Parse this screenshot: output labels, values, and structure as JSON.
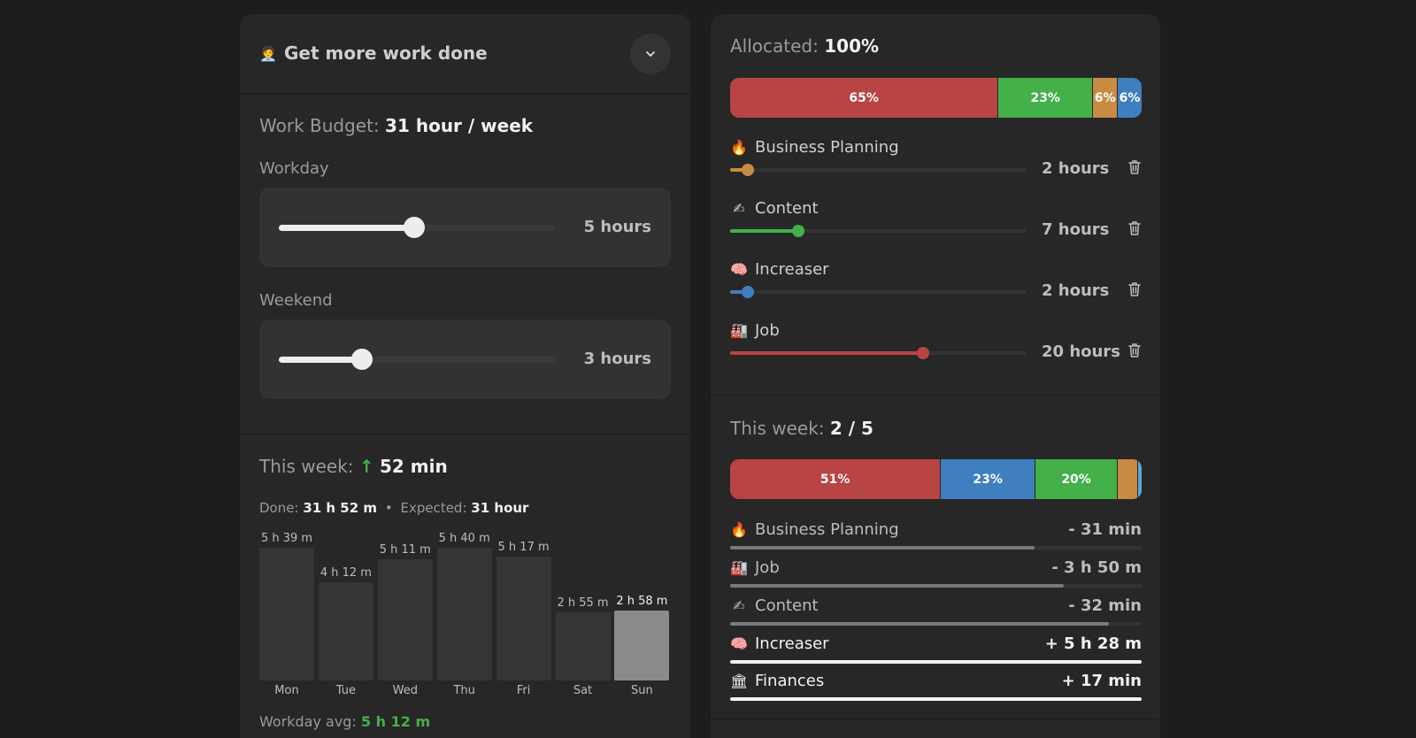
{
  "goal": {
    "icon": "🧑‍💼",
    "title": "Get more work done"
  },
  "budget": {
    "label": "Work Budget:",
    "value": "31 hour / week"
  },
  "workday": {
    "label": "Workday",
    "value": "5 hours",
    "fraction": 0.49
  },
  "weekend": {
    "label": "Weekend",
    "value": "3 hours",
    "fraction": 0.3
  },
  "this_week_left": {
    "label": "This week:",
    "arrow": "↑",
    "value": "52 min",
    "done_label": "Done:",
    "done_value": "31 h 52 m",
    "dot": "•",
    "expected_label": "Expected:",
    "expected_value": "31 hour",
    "avg_label": "Workday avg:",
    "avg_value": "5 h 12 m"
  },
  "chart_data": {
    "type": "bar",
    "categories": [
      "Mon",
      "Tue",
      "Wed",
      "Thu",
      "Fri",
      "Sat",
      "Sun"
    ],
    "values": [
      339,
      252,
      311,
      340,
      317,
      175,
      178
    ],
    "value_labels": [
      "5 h 39 m",
      "4 h 12 m",
      "5 h 11 m",
      "5 h 40 m",
      "5 h 17 m",
      "2 h 55 m",
      "2 h 58 m"
    ],
    "highlight_index": 6,
    "xlabel": "",
    "ylabel": ""
  },
  "allocated": {
    "label": "Allocated:",
    "value": "100%",
    "segments": [
      {
        "label": "65%",
        "pct": 65,
        "color": "#b84444"
      },
      {
        "label": "23%",
        "pct": 23,
        "color": "#43b04a"
      },
      {
        "label": "6%",
        "pct": 6,
        "color": "#c98a42"
      },
      {
        "label": "6%",
        "pct": 6,
        "color": "#3f7fc0"
      }
    ]
  },
  "categories": [
    {
      "icon": "🔥",
      "name": "Business Planning",
      "hours": "2 hours",
      "fraction": 0.06,
      "color": "#c98a42"
    },
    {
      "icon": "✍",
      "name": "Content",
      "hours": "7 hours",
      "fraction": 0.23,
      "color": "#43b04a"
    },
    {
      "icon": "🧠",
      "name": "Increaser",
      "hours": "2 hours",
      "fraction": 0.06,
      "color": "#3f7fc0"
    },
    {
      "icon": "🏭",
      "name": "Job",
      "hours": "20 hours",
      "fraction": 0.65,
      "color": "#b84444"
    }
  ],
  "this_week_right": {
    "label": "This week:",
    "value": "2 / 5",
    "segments": [
      {
        "label": "51%",
        "pct": 51,
        "color": "#b84444"
      },
      {
        "label": "23%",
        "pct": 23,
        "color": "#3f7fc0"
      },
      {
        "label": "20%",
        "pct": 20,
        "color": "#43b04a"
      },
      {
        "label": "",
        "pct": 5,
        "color": "#c98a42"
      },
      {
        "label": "",
        "pct": 1,
        "color": "#5aa8d8"
      }
    ],
    "rows": [
      {
        "icon": "🔥",
        "name": "Business Planning",
        "diff": "- 31 min",
        "fraction": 0.74,
        "positive": false
      },
      {
        "icon": "🏭",
        "name": "Job",
        "diff": "- 3 h 50 m",
        "fraction": 0.81,
        "positive": false
      },
      {
        "icon": "✍",
        "name": "Content",
        "diff": "- 32 min",
        "fraction": 0.92,
        "positive": false
      },
      {
        "icon": "🧠",
        "name": "Increaser",
        "diff": "+ 5 h 28 m",
        "fraction": 1.0,
        "positive": true
      },
      {
        "icon": "🏛",
        "name": "Finances",
        "diff": "+ 17 min",
        "fraction": 1.0,
        "positive": true
      }
    ]
  },
  "colors": {
    "green": "#43b04a",
    "accent_text": "#f2f2f2"
  }
}
